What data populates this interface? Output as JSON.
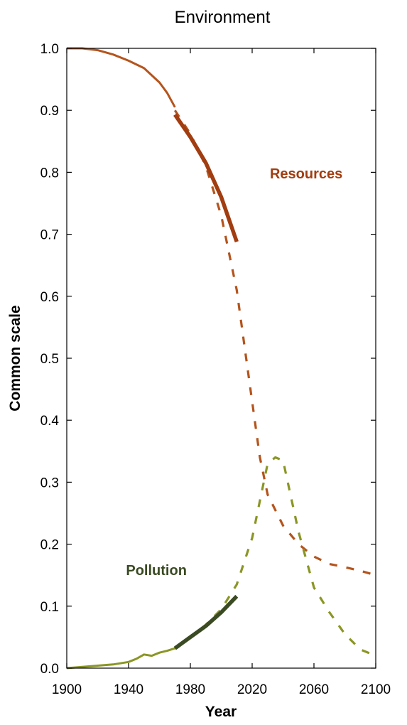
{
  "chart_data": {
    "type": "line",
    "title": "Environment",
    "xlabel": "Year",
    "ylabel": "Common scale",
    "xlim": [
      1900,
      2100
    ],
    "ylim": [
      0,
      1
    ],
    "xticks": [
      "1900",
      "1940",
      "1980",
      "2020",
      "2060",
      "2100"
    ],
    "yticks": [
      "0.0",
      "0.1",
      "0.2",
      "0.3",
      "0.4",
      "0.5",
      "0.6",
      "0.7",
      "0.8",
      "0.9",
      "1.0"
    ],
    "grid": false,
    "series": [
      {
        "name": "Resources",
        "color": "#b5541c",
        "style": "thin-solid",
        "x": [
          1900,
          1910,
          1920,
          1930,
          1940,
          1950,
          1960,
          1965,
          1970
        ],
        "y": [
          1.0,
          1.0,
          0.997,
          0.99,
          0.98,
          0.968,
          0.945,
          0.928,
          0.905
        ]
      },
      {
        "name": "Resources",
        "color": "#b5541c",
        "style": "dashed",
        "x": [
          1970,
          1980,
          1990,
          2000,
          2010,
          2020,
          2025,
          2030,
          2040,
          2050,
          2060,
          2070,
          2080,
          2090,
          2100
        ],
        "y": [
          0.9,
          0.862,
          0.81,
          0.73,
          0.61,
          0.43,
          0.34,
          0.28,
          0.23,
          0.2,
          0.18,
          0.168,
          0.163,
          0.157,
          0.15
        ]
      },
      {
        "name": "Resources",
        "color": "#a13d10",
        "style": "thick-solid",
        "x": [
          1970,
          1980,
          1990,
          2000,
          2010
        ],
        "y": [
          0.893,
          0.857,
          0.815,
          0.76,
          0.688
        ]
      },
      {
        "name": "Pollution",
        "color": "#8a9624",
        "style": "thin-solid",
        "x": [
          1900,
          1910,
          1920,
          1930,
          1940,
          1945,
          1950,
          1955,
          1960,
          1965,
          1970
        ],
        "y": [
          0.0,
          0.002,
          0.004,
          0.006,
          0.01,
          0.015,
          0.022,
          0.02,
          0.025,
          0.028,
          0.032
        ]
      },
      {
        "name": "Pollution",
        "color": "#8a9624",
        "style": "dashed",
        "x": [
          1970,
          1980,
          1990,
          2000,
          2010,
          2020,
          2030,
          2035,
          2040,
          2050,
          2060,
          2070,
          2080,
          2090,
          2100
        ],
        "y": [
          0.032,
          0.05,
          0.07,
          0.095,
          0.135,
          0.21,
          0.33,
          0.34,
          0.335,
          0.22,
          0.13,
          0.09,
          0.055,
          0.03,
          0.02
        ]
      },
      {
        "name": "Pollution",
        "color": "#3a4a22",
        "style": "thick-solid",
        "x": [
          1970,
          1980,
          1990,
          2000,
          2010
        ],
        "y": [
          0.032,
          0.05,
          0.068,
          0.09,
          0.116
        ]
      }
    ],
    "annotations": [
      {
        "text": "Resources",
        "x": 2055,
        "y": 0.79,
        "color": "#a13d10"
      },
      {
        "text": "Pollution",
        "x": 1958,
        "y": 0.15,
        "color": "#3a4a22"
      }
    ]
  }
}
